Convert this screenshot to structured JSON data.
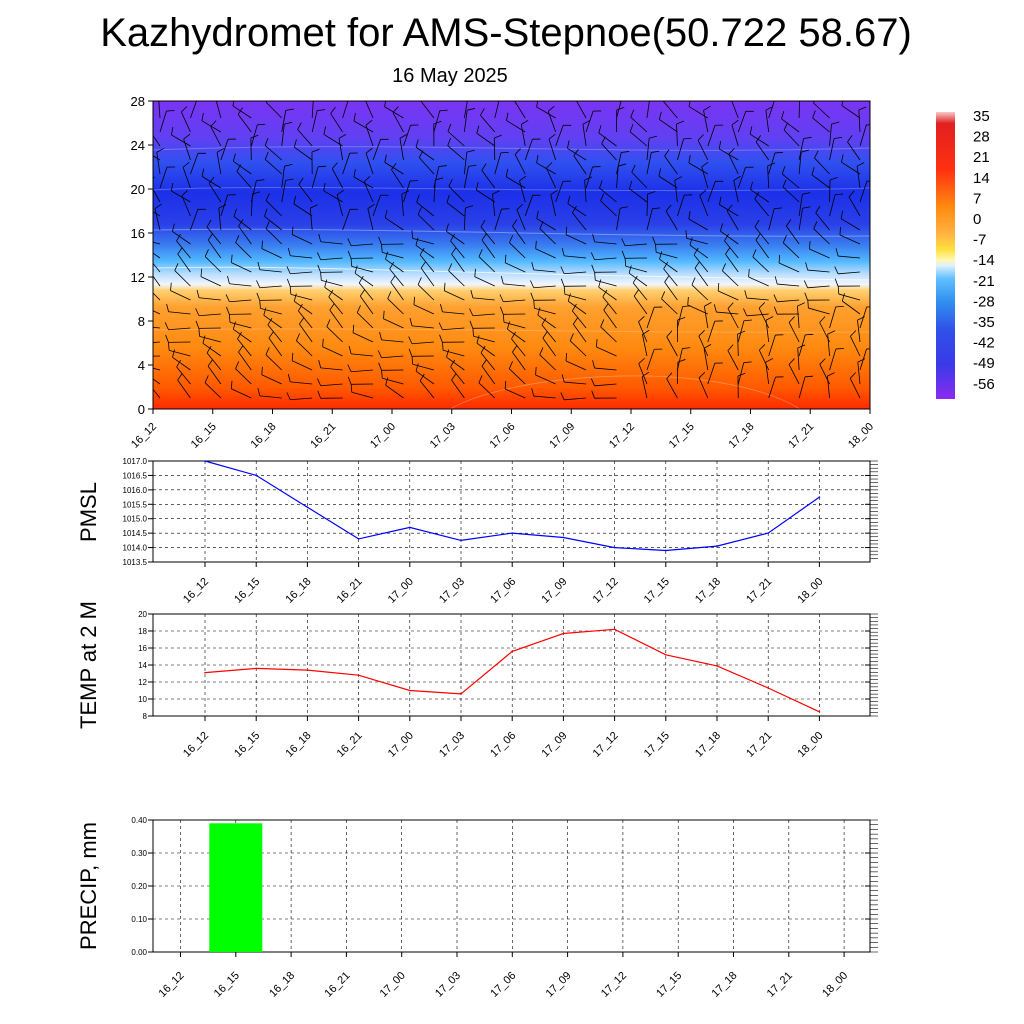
{
  "title": "Kazhydromet for AMS-Stepnoe(50.722 58.67)",
  "subtitle": "16 May 2025",
  "colors": {
    "pmsl_line": "#0000ff",
    "temp_line": "#ff0000",
    "precip_bar": "#00ff00",
    "grid": "#000000",
    "barb": "#000000"
  },
  "chart_data": [
    {
      "type": "heatmap",
      "name": "upper-air-temperature-cross-section",
      "x_ticks": [
        "16_12",
        "16_15",
        "16_18",
        "16_21",
        "17_00",
        "17_03",
        "17_06",
        "17_09",
        "17_12",
        "17_15",
        "17_18",
        "17_21",
        "18_00"
      ],
      "y_ticks": [
        "0",
        "4",
        "8",
        "12",
        "16",
        "20",
        "24",
        "28"
      ],
      "ylim": [
        0,
        28
      ],
      "colorbar": {
        "labels": [
          "35",
          "28",
          "21",
          "14",
          "7",
          "0",
          "-7",
          "-14",
          "-21",
          "-28",
          "-35",
          "-42",
          "-49",
          "-56"
        ],
        "range": [
          -60,
          38
        ]
      },
      "wind_barbs": true
    },
    {
      "type": "line",
      "ylabel": "PMSL",
      "x": [
        "16_12",
        "16_15",
        "16_18",
        "16_21",
        "17_00",
        "17_03",
        "17_06",
        "17_09",
        "17_12",
        "17_15",
        "17_18",
        "17_21",
        "18_00"
      ],
      "values": [
        1017.0,
        1016.5,
        1015.4,
        1014.3,
        1014.7,
        1014.25,
        1014.5,
        1014.35,
        1014.0,
        1013.9,
        1014.05,
        1014.5,
        1015.75
      ],
      "ylim": [
        1013.5,
        1017.0
      ],
      "y_ticks": [
        "1013.5",
        "1014.0",
        "1014.5",
        "1015.0",
        "1015.5",
        "1016.0",
        "1016.5",
        "1017.0"
      ],
      "grid": true
    },
    {
      "type": "line",
      "ylabel": "TEMP at 2 M",
      "x": [
        "16_12",
        "16_15",
        "16_18",
        "16_21",
        "17_00",
        "17_03",
        "17_06",
        "17_09",
        "17_12",
        "17_15",
        "17_18",
        "17_21",
        "18_00"
      ],
      "values": [
        13.1,
        13.6,
        13.4,
        12.8,
        11.0,
        10.6,
        15.6,
        17.7,
        18.2,
        15.2,
        13.9,
        11.3,
        8.5
      ],
      "ylim": [
        8,
        20
      ],
      "y_ticks": [
        "8",
        "10",
        "12",
        "14",
        "16",
        "18",
        "20"
      ],
      "grid": true
    },
    {
      "type": "bar",
      "ylabel": "PRECIP, mm",
      "categories": [
        "16_12",
        "16_15",
        "16_18",
        "16_21",
        "17_00",
        "17_03",
        "17_06",
        "17_09",
        "17_12",
        "17_15",
        "17_18",
        "17_21",
        "18_00"
      ],
      "values": [
        0,
        0.39,
        0,
        0,
        0,
        0,
        0,
        0,
        0,
        0,
        0,
        0,
        0
      ],
      "ylim": [
        0,
        0.4
      ],
      "y_ticks": [
        "0.00",
        "0.10",
        "0.20",
        "0.30",
        "0.40"
      ],
      "grid": true
    }
  ]
}
